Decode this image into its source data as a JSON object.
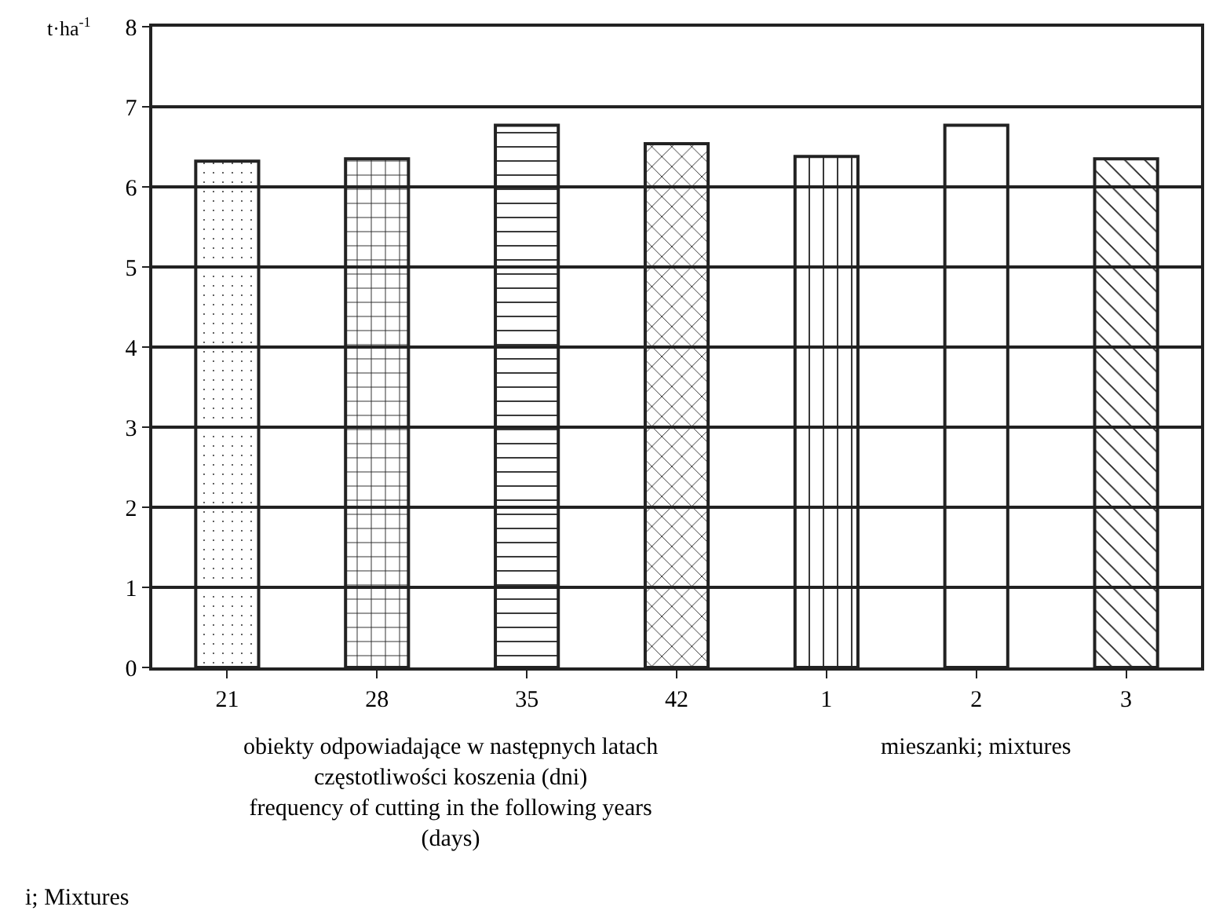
{
  "chart_data": {
    "type": "bar",
    "ylabel": "t·ha$^{-1}$",
    "categories": [
      "21",
      "28",
      "35",
      "42",
      "1",
      "2",
      "3"
    ],
    "series": [
      {
        "values": [
          6.32,
          6.35,
          6.77,
          6.54,
          6.38,
          6.77,
          6.35
        ]
      }
    ],
    "ylim": [
      0,
      8
    ],
    "yticks": [
      0,
      1,
      2,
      3,
      4,
      5,
      6,
      7,
      8
    ],
    "grid": "y",
    "annotations": [
      "obiekty odpowiadające w następnych latach\nczęstotliwości koszenia (dni)\nfrequency of cutting in the following years\n(days)",
      "mieszanki; mixtures",
      "i; Mixtures"
    ]
  }
}
